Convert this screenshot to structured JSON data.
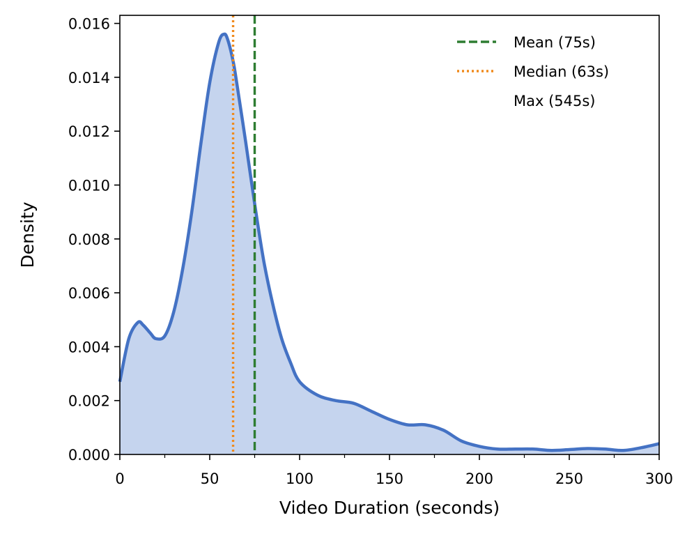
{
  "chart_data": {
    "type": "area",
    "xlabel": "Video Duration (seconds)",
    "ylabel": "Density",
    "xlim": [
      0,
      300
    ],
    "ylim": [
      0,
      0.0163
    ],
    "x_ticks": [
      0,
      50,
      100,
      150,
      200,
      250,
      300
    ],
    "x_tick_labels": [
      "0",
      "50",
      "100",
      "150",
      "200",
      "250",
      "300"
    ],
    "x_minor_ticks": [
      25,
      75,
      125,
      175,
      225,
      275
    ],
    "y_ticks": [
      0,
      0.002,
      0.004,
      0.006,
      0.008,
      0.01,
      0.012,
      0.014,
      0.016
    ],
    "y_tick_labels": [
      "0.000",
      "0.002",
      "0.004",
      "0.006",
      "0.008",
      "0.010",
      "0.012",
      "0.014",
      "0.016"
    ],
    "grid": false,
    "legend_position": "top-right",
    "series": [
      {
        "kind": "density",
        "color": "#4472c4",
        "fill_color": "#c5d4ee",
        "x": [
          0,
          5,
          10,
          13,
          17,
          20,
          25,
          30,
          35,
          40,
          45,
          50,
          55,
          58,
          60,
          63,
          65,
          70,
          75,
          80,
          85,
          90,
          95,
          100,
          110,
          120,
          130,
          140,
          150,
          160,
          170,
          180,
          190,
          200,
          210,
          220,
          230,
          240,
          250,
          260,
          270,
          280,
          290,
          300
        ],
        "y": [
          0.0027,
          0.0043,
          0.0049,
          0.0048,
          0.0045,
          0.0043,
          0.0044,
          0.0053,
          0.0069,
          0.009,
          0.0115,
          0.0138,
          0.0153,
          0.0156,
          0.0154,
          0.0146,
          0.0138,
          0.0116,
          0.0093,
          0.0072,
          0.0056,
          0.0043,
          0.0034,
          0.0027,
          0.0022,
          0.002,
          0.0019,
          0.0016,
          0.0013,
          0.0011,
          0.0011,
          0.0009,
          0.0005,
          0.0003,
          0.0002,
          0.0002,
          0.0002,
          0.00015,
          0.00018,
          0.00022,
          0.0002,
          0.00015,
          0.00025,
          0.0004
        ]
      }
    ],
    "reference_lines": [
      {
        "label": "Mean (75s)",
        "x": 75,
        "color": "#2e7d32",
        "style": "dashed"
      },
      {
        "label": "Median (63s)",
        "x": 63,
        "color": "#f08a1c",
        "style": "dotted"
      }
    ],
    "legend": [
      {
        "label": "Mean (75s)",
        "color": "#2e7d32",
        "style": "dashed"
      },
      {
        "label": "Median (63s)",
        "color": "#f08a1c",
        "style": "dotted"
      },
      {
        "label": "Max (545s)",
        "color": "",
        "style": "none"
      }
    ]
  }
}
